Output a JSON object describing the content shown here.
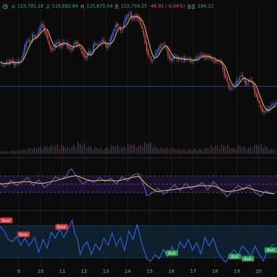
{
  "legend": {
    "open_label": "시",
    "open": "115,781.16",
    "high_label": "고",
    "high": "115,892.84",
    "low_label": "저",
    "low": "115,675.54",
    "close_label": "종",
    "close": "115,734.25",
    "change": "-46.91 (-0.04%)",
    "volume_label": "볼륨",
    "volume": "194.12"
  },
  "colors": {
    "background": "#0b0b0b",
    "up": "#26a69a",
    "down": "#ef5350",
    "candle_up": "#4a6fe0",
    "candle_down": "#e05050",
    "ma_line": "#f0c860",
    "indicator_line": "#3f63e8",
    "bull": "#2e9e5a",
    "bear": "#d83a3a"
  },
  "chart_data": [
    {
      "type": "candlestick",
      "x_tick_labels": [
        "9",
        "10",
        "11",
        "12",
        "13",
        "14",
        "15",
        "16",
        "17",
        "18",
        "19",
        "20"
      ],
      "y_range": [
        113400,
        120400
      ],
      "horizontal_level": 116600,
      "price_series_approx": [
        [
          0,
          117800
        ],
        [
          4,
          117600
        ],
        [
          8,
          117800
        ],
        [
          12,
          117750
        ],
        [
          16,
          117900
        ],
        [
          20,
          117700
        ],
        [
          24,
          117750
        ],
        [
          28,
          117850
        ],
        [
          32,
          118000
        ],
        [
          36,
          118600
        ],
        [
          40,
          118900
        ],
        [
          44,
          118800
        ],
        [
          48,
          119200
        ],
        [
          52,
          119000
        ],
        [
          56,
          119300
        ],
        [
          60,
          119700
        ],
        [
          64,
          119400
        ],
        [
          68,
          119100
        ],
        [
          72,
          118500
        ],
        [
          76,
          118400
        ],
        [
          80,
          118700
        ],
        [
          84,
          118800
        ],
        [
          88,
          118600
        ],
        [
          92,
          118800
        ],
        [
          96,
          118700
        ],
        [
          100,
          118500
        ],
        [
          104,
          118400
        ],
        [
          108,
          118800
        ],
        [
          112,
          118700
        ],
        [
          116,
          118500
        ],
        [
          120,
          118200
        ],
        [
          124,
          118000
        ],
        [
          128,
          118300
        ],
        [
          132,
          118200
        ],
        [
          136,
          118800
        ],
        [
          140,
          118600
        ],
        [
          144,
          118700
        ],
        [
          148,
          118900
        ],
        [
          152,
          118700
        ],
        [
          156,
          118500
        ],
        [
          160,
          119000
        ],
        [
          164,
          119300
        ],
        [
          168,
          119700
        ],
        [
          172,
          119500
        ],
        [
          176,
          119300
        ],
        [
          180,
          119900
        ],
        [
          184,
          120100
        ],
        [
          188,
          120200
        ],
        [
          192,
          119900
        ],
        [
          196,
          120100
        ],
        [
          200,
          120000
        ],
        [
          204,
          119600
        ],
        [
          208,
          119100
        ],
        [
          212,
          118400
        ],
        [
          216,
          118000
        ],
        [
          220,
          117800
        ],
        [
          224,
          118200
        ],
        [
          228,
          118400
        ],
        [
          232,
          118600
        ],
        [
          236,
          118700
        ],
        [
          240,
          118500
        ],
        [
          244,
          118000
        ],
        [
          248,
          117900
        ],
        [
          252,
          118100
        ],
        [
          256,
          118000
        ],
        [
          260,
          117900
        ],
        [
          264,
          118000
        ],
        [
          268,
          117900
        ],
        [
          272,
          118000
        ],
        [
          276,
          117800
        ],
        [
          280,
          117900
        ],
        [
          284,
          118000
        ],
        [
          288,
          118100
        ],
        [
          292,
          118200
        ],
        [
          296,
          118000
        ],
        [
          300,
          118100
        ],
        [
          304,
          118000
        ],
        [
          308,
          117900
        ],
        [
          312,
          117800
        ],
        [
          316,
          117900
        ],
        [
          320,
          117700
        ],
        [
          324,
          117200
        ],
        [
          328,
          116900
        ],
        [
          332,
          116400
        ],
        [
          336,
          116600
        ],
        [
          340,
          116700
        ],
        [
          344,
          116900
        ],
        [
          348,
          117200
        ],
        [
          352,
          117000
        ],
        [
          356,
          116600
        ],
        [
          360,
          117000
        ],
        [
          364,
          116800
        ],
        [
          368,
          116300
        ],
        [
          372,
          116000
        ],
        [
          376,
          115600
        ],
        [
          380,
          115300
        ],
        [
          384,
          115400
        ],
        [
          388,
          115500
        ],
        [
          392,
          115650
        ],
        [
          396,
          115734
        ]
      ],
      "volume_series_approx": [
        [
          10,
          4
        ],
        [
          28,
          6
        ],
        [
          44,
          9
        ],
        [
          60,
          11
        ],
        [
          84,
          14
        ],
        [
          100,
          10
        ],
        [
          112,
          18
        ],
        [
          128,
          12
        ],
        [
          148,
          8
        ],
        [
          164,
          14
        ],
        [
          176,
          10
        ],
        [
          188,
          16
        ],
        [
          200,
          12
        ],
        [
          212,
          20
        ],
        [
          226,
          10
        ],
        [
          244,
          9
        ],
        [
          268,
          7
        ],
        [
          292,
          8
        ],
        [
          304,
          12
        ],
        [
          326,
          14
        ],
        [
          336,
          8
        ],
        [
          344,
          13
        ],
        [
          356,
          9
        ],
        [
          372,
          16
        ],
        [
          384,
          11
        ],
        [
          396,
          6
        ]
      ]
    },
    {
      "type": "line",
      "name": "",
      "y_range": [
        0,
        100
      ],
      "bands": [
        75,
        50,
        25
      ],
      "values_approx": [
        [
          0,
          55
        ],
        [
          8,
          40
        ],
        [
          16,
          62
        ],
        [
          24,
          45
        ],
        [
          32,
          58
        ],
        [
          40,
          70
        ],
        [
          48,
          46
        ],
        [
          56,
          63
        ],
        [
          64,
          40
        ],
        [
          72,
          52
        ],
        [
          80,
          72
        ],
        [
          88,
          65
        ],
        [
          96,
          75
        ],
        [
          100,
          92
        ],
        [
          104,
          96
        ],
        [
          108,
          80
        ],
        [
          112,
          70
        ],
        [
          120,
          50
        ],
        [
          128,
          64
        ],
        [
          136,
          55
        ],
        [
          144,
          70
        ],
        [
          152,
          58
        ],
        [
          160,
          68
        ],
        [
          168,
          50
        ],
        [
          176,
          72
        ],
        [
          184,
          60
        ],
        [
          192,
          78
        ],
        [
          200,
          82
        ],
        [
          204,
          66
        ],
        [
          208,
          44
        ],
        [
          212,
          15
        ],
        [
          220,
          24
        ],
        [
          228,
          38
        ],
        [
          236,
          20
        ],
        [
          244,
          32
        ],
        [
          252,
          48
        ],
        [
          260,
          30
        ],
        [
          268,
          52
        ],
        [
          276,
          36
        ],
        [
          284,
          45
        ],
        [
          292,
          55
        ],
        [
          300,
          32
        ],
        [
          308,
          58
        ],
        [
          316,
          40
        ],
        [
          324,
          22
        ],
        [
          328,
          12
        ],
        [
          336,
          30
        ],
        [
          344,
          46
        ],
        [
          352,
          34
        ],
        [
          360,
          48
        ],
        [
          368,
          26
        ],
        [
          376,
          14
        ],
        [
          384,
          30
        ],
        [
          392,
          22
        ],
        [
          396,
          20
        ]
      ],
      "signal_approx": [
        [
          0,
          50
        ],
        [
          20,
          55
        ],
        [
          40,
          58
        ],
        [
          60,
          52
        ],
        [
          80,
          60
        ],
        [
          100,
          72
        ],
        [
          110,
          76
        ],
        [
          130,
          60
        ],
        [
          150,
          62
        ],
        [
          170,
          60
        ],
        [
          190,
          70
        ],
        [
          200,
          74
        ],
        [
          212,
          48
        ],
        [
          226,
          28
        ],
        [
          250,
          34
        ],
        [
          270,
          40
        ],
        [
          290,
          46
        ],
        [
          310,
          44
        ],
        [
          326,
          28
        ],
        [
          340,
          30
        ],
        [
          356,
          40
        ],
        [
          372,
          30
        ],
        [
          390,
          22
        ],
        [
          396,
          22
        ]
      ]
    },
    {
      "type": "line",
      "name": "",
      "values_approx": [
        [
          0,
          0.85
        ],
        [
          6,
          0.75
        ],
        [
          12,
          0.55
        ],
        [
          18,
          0.5
        ],
        [
          24,
          0.62
        ],
        [
          30,
          0.42
        ],
        [
          36,
          0.58
        ],
        [
          42,
          0.4
        ],
        [
          50,
          0.6
        ],
        [
          56,
          0.25
        ],
        [
          62,
          0.55
        ],
        [
          68,
          0.35
        ],
        [
          74,
          0.72
        ],
        [
          80,
          0.58
        ],
        [
          86,
          0.8
        ],
        [
          92,
          0.6
        ],
        [
          100,
          0.85
        ],
        [
          104,
          1.0
        ],
        [
          108,
          0.7
        ],
        [
          112,
          0.55
        ],
        [
          116,
          0.2
        ],
        [
          120,
          0.38
        ],
        [
          126,
          0.5
        ],
        [
          132,
          0.2
        ],
        [
          138,
          0.45
        ],
        [
          144,
          0.3
        ],
        [
          150,
          0.58
        ],
        [
          156,
          0.42
        ],
        [
          162,
          0.7
        ],
        [
          168,
          0.4
        ],
        [
          174,
          0.6
        ],
        [
          180,
          0.3
        ],
        [
          186,
          0.75
        ],
        [
          192,
          0.55
        ],
        [
          198,
          0.9
        ],
        [
          204,
          0.5
        ],
        [
          208,
          0.3
        ],
        [
          212,
          0.1
        ],
        [
          218,
          0.05
        ],
        [
          224,
          0.2
        ],
        [
          230,
          0.1
        ],
        [
          236,
          0.32
        ],
        [
          242,
          0.15
        ],
        [
          248,
          0.38
        ],
        [
          254,
          0.2
        ],
        [
          260,
          0.5
        ],
        [
          266,
          0.35
        ],
        [
          272,
          0.55
        ],
        [
          278,
          0.3
        ],
        [
          284,
          0.48
        ],
        [
          290,
          0.22
        ],
        [
          296,
          0.6
        ],
        [
          302,
          0.4
        ],
        [
          308,
          0.58
        ],
        [
          314,
          0.28
        ],
        [
          320,
          0.12
        ],
        [
          326,
          0.02
        ],
        [
          332,
          0.2
        ],
        [
          338,
          0.32
        ],
        [
          344,
          0.2
        ],
        [
          350,
          0.4
        ],
        [
          356,
          0.3
        ],
        [
          362,
          0.15
        ],
        [
          368,
          0.4
        ],
        [
          374,
          0.22
        ],
        [
          380,
          0.05
        ],
        [
          386,
          0.28
        ],
        [
          392,
          0.4
        ],
        [
          396,
          0.45
        ]
      ],
      "signals": [
        {
          "label": "Bear",
          "x": 0
        },
        {
          "label": "Bear",
          "x": 34
        },
        {
          "label": "Bear",
          "x": 89
        },
        {
          "label": "Bull",
          "x": 248
        },
        {
          "label": "Bull",
          "x": 339
        },
        {
          "label": "Bull",
          "x": 358
        },
        {
          "label": "Bull",
          "x": 398
        }
      ]
    }
  ]
}
